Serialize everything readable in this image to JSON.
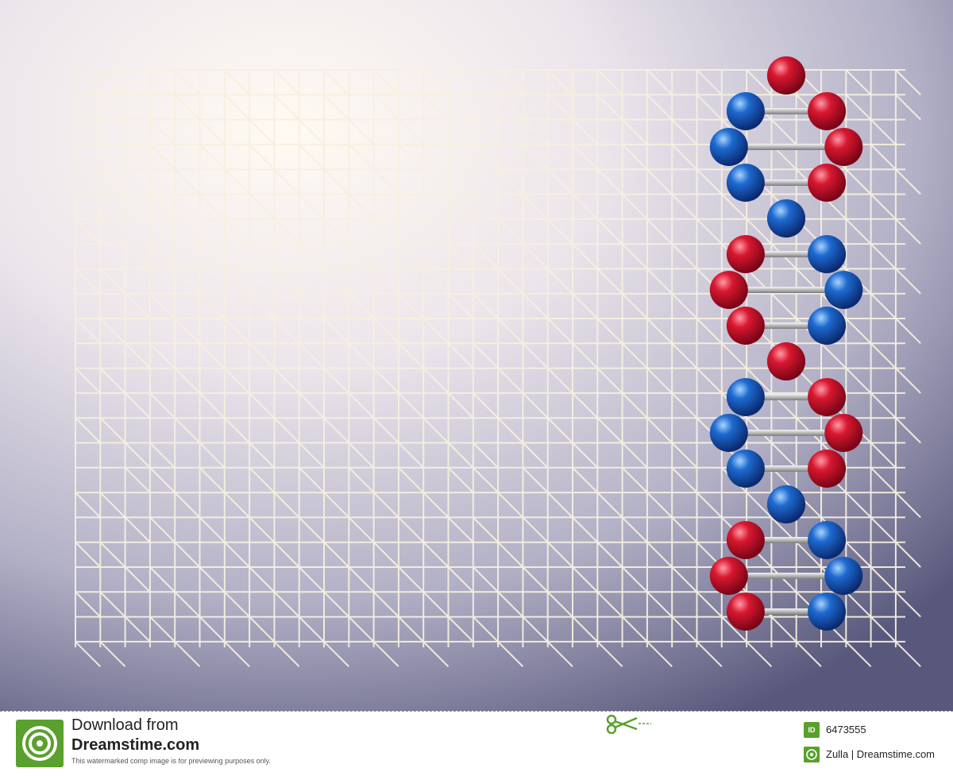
{
  "footer": {
    "download_label": "Download from",
    "site_name": "Dreamstime.com",
    "preview_note": "This watermarked comp image is for previewing purposes only.",
    "id_badge": "ID",
    "image_id": "6473555",
    "credit": "Zulla | Dreamstime.com"
  },
  "colors": {
    "dna_red": "#c8102e",
    "dna_blue": "#1e63c8",
    "grid_line": "#f4ecd8",
    "logo_green": "#5aa02c"
  },
  "icons": [
    "dreamstime-logo-icon",
    "scissors-icon",
    "id-badge-icon",
    "creative-commons-icon"
  ]
}
